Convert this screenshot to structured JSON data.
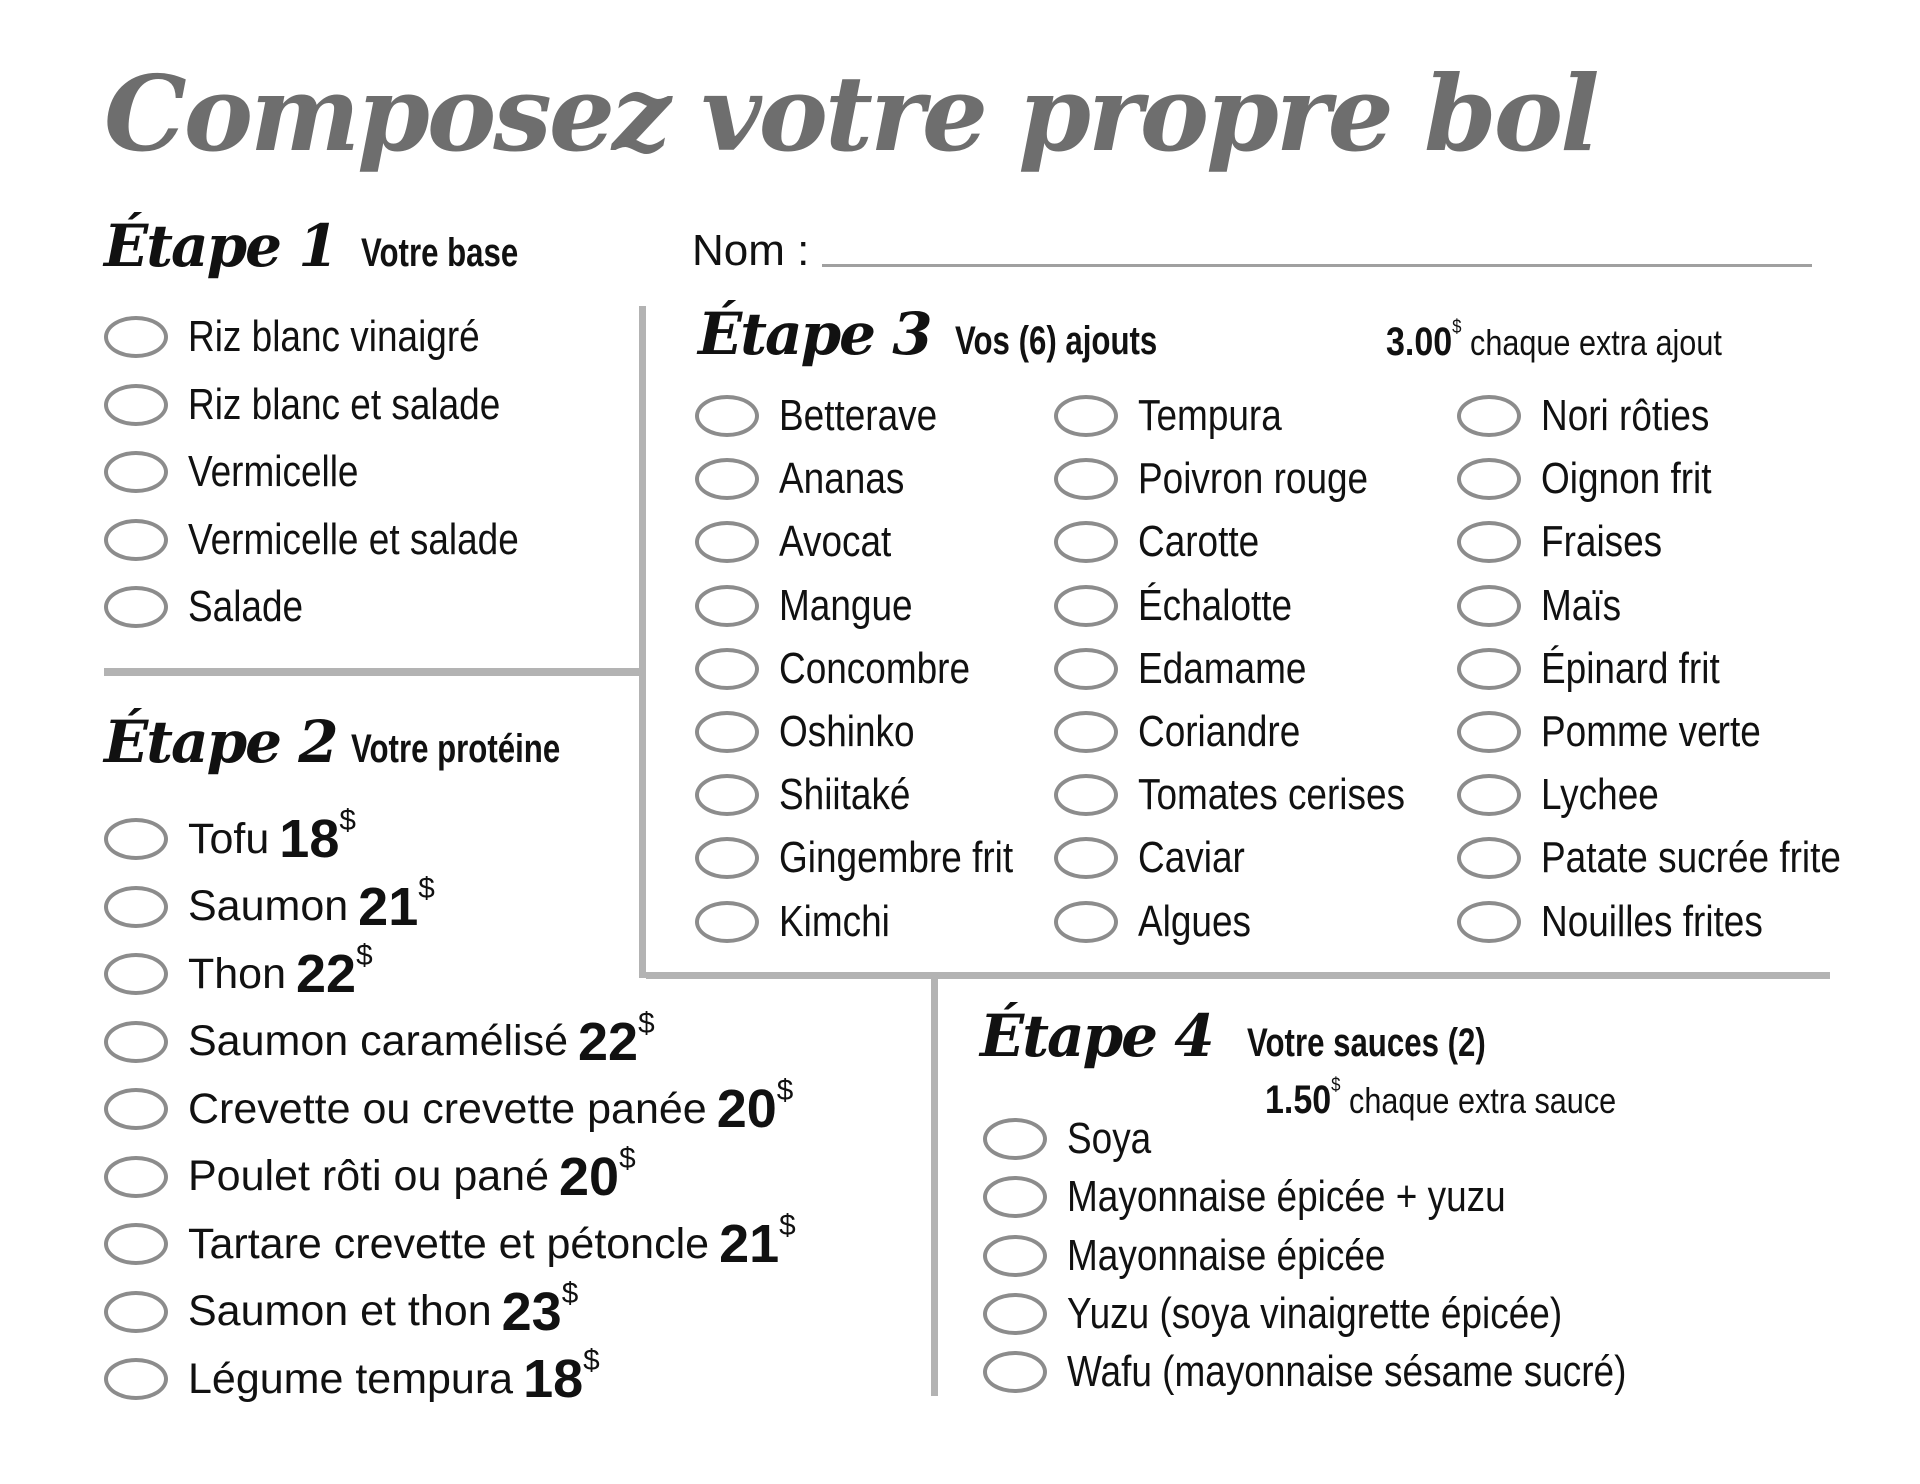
{
  "title": "Composez votre propre bol",
  "name_field": {
    "label": "Nom :",
    "value": ""
  },
  "colors": {
    "title": "#6e6e6e",
    "divider": "#b3b3b3",
    "radio_border": "#8c8c8c",
    "text": "#111111"
  },
  "icons": {
    "option": "radio-circle-icon"
  },
  "step1": {
    "heading": "Étape 1",
    "subtitle": "Votre base",
    "items": [
      "Riz blanc vinaigré",
      "Riz blanc et salade",
      "Vermicelle",
      "Vermicelle et salade",
      "Salade"
    ]
  },
  "step2": {
    "heading": "Étape 2",
    "subtitle": "Votre protéine",
    "items": [
      {
        "label": "Tofu",
        "price": "18",
        "currency": "$"
      },
      {
        "label": "Saumon",
        "price": "21",
        "currency": "$"
      },
      {
        "label": "Thon",
        "price": "22",
        "currency": "$"
      },
      {
        "label": "Saumon caramélisé",
        "price": "22",
        "currency": "$"
      },
      {
        "label": "Crevette ou crevette panée",
        "price": "20",
        "currency": "$"
      },
      {
        "label": "Poulet rôti ou pané",
        "price": "20",
        "currency": "$"
      },
      {
        "label": "Tartare crevette et pétoncle",
        "price": "21",
        "currency": "$"
      },
      {
        "label": "Saumon et thon",
        "price": "23",
        "currency": "$"
      },
      {
        "label": "Légume tempura",
        "price": "18",
        "currency": "$"
      }
    ]
  },
  "step3": {
    "heading": "Étape 3",
    "subtitle": "Vos (6) ajouts",
    "extra_price": "3.00",
    "extra_currency": "$",
    "extra_text": "chaque extra ajout",
    "columns": [
      [
        "Betterave",
        "Ananas",
        "Avocat",
        "Mangue",
        "Concombre",
        "Oshinko",
        "Shiitaké",
        "Gingembre frit",
        "Kimchi"
      ],
      [
        "Tempura",
        "Poivron rouge",
        "Carotte",
        "Échalotte",
        "Edamame",
        "Coriandre",
        "Tomates cerises",
        "Caviar",
        "Algues"
      ],
      [
        "Nori rôties",
        "Oignon frit",
        "Fraises",
        "Maïs",
        "Épinard frit",
        "Pomme verte",
        "Lychee",
        "Patate sucrée frite",
        "Nouilles frites"
      ]
    ]
  },
  "step4": {
    "heading": "Étape 4",
    "subtitle": "Votre sauces (2)",
    "extra_price": "1.50",
    "extra_currency": "$",
    "extra_text": "chaque extra sauce",
    "items": [
      "Soya",
      "Mayonnaise épicée + yuzu",
      "Mayonnaise épicée",
      "Yuzu (soya vinaigrette épicée)",
      "Wafu (mayonnaise sésame sucré)"
    ]
  }
}
